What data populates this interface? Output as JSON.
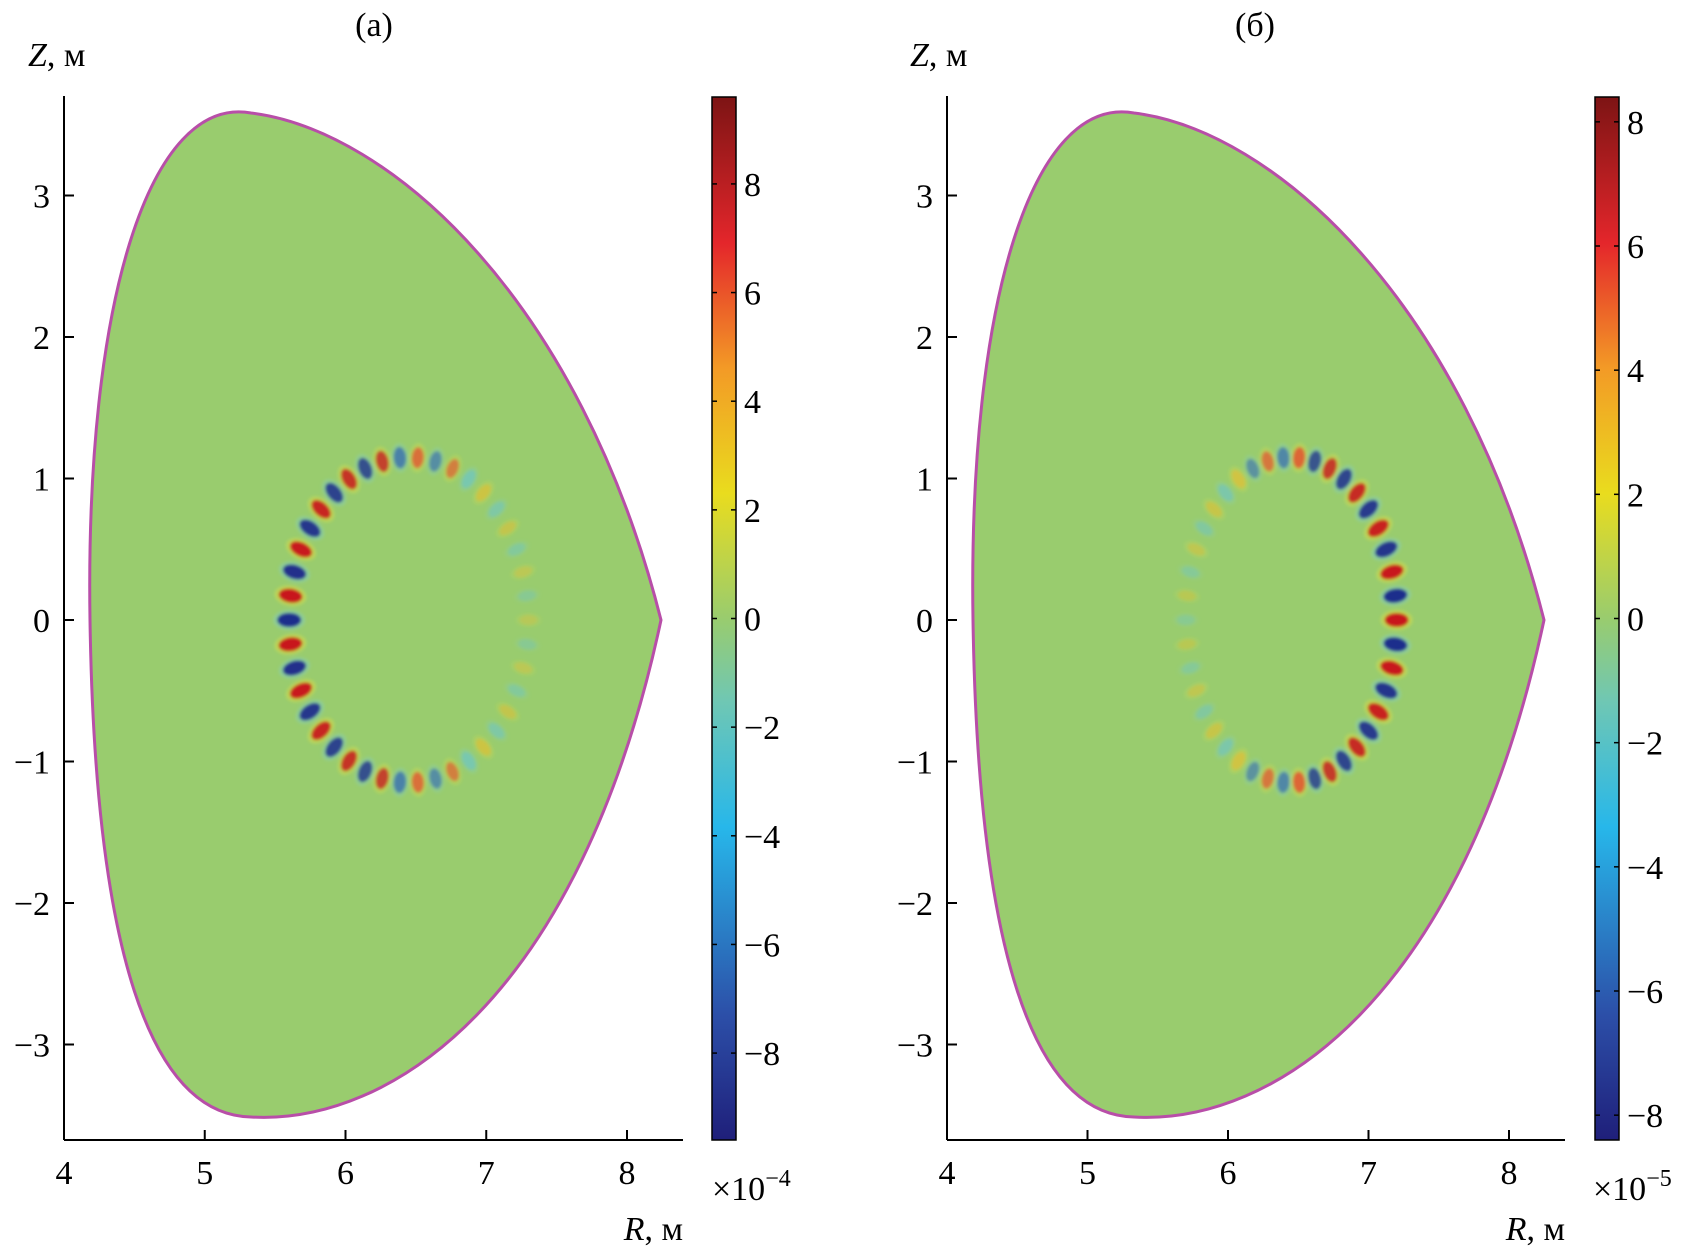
{
  "chart_data": [
    {
      "type": "heatmap",
      "panel_label": "(a)",
      "xlabel_var": "R",
      "xlabel_unit": ", м",
      "ylabel_var": "Z",
      "ylabel_unit": ", м",
      "xlim": [
        4,
        8.4
      ],
      "ylim": [
        -3.7,
        3.7
      ],
      "x_ticks": [
        "4",
        "5",
        "6",
        "7",
        "8"
      ],
      "y_ticks": [
        "3",
        "2",
        "1",
        "0",
        "−1",
        "−2",
        "−3"
      ],
      "colorbar": {
        "ticks": [
          "8",
          "6",
          "4",
          "2",
          "0",
          "−2",
          "−4",
          "−6",
          "−8"
        ],
        "range": [
          -9.6,
          9.6
        ],
        "scale_base": "×10",
        "scale_exp": "−4"
      },
      "boundary_color": "#b84ea8",
      "background_color": "#99cc6e",
      "ring": {
        "center": [
          6.45,
          0
        ],
        "radius_r": 0.85,
        "radius_z": 1.15,
        "blobs": 42,
        "dominant_side": "left"
      }
    },
    {
      "type": "heatmap",
      "panel_label": "(б)",
      "xlabel_var": "R",
      "xlabel_unit": ", м",
      "ylabel_var": "Z",
      "ylabel_unit": ", м",
      "xlim": [
        4,
        8.4
      ],
      "ylim": [
        -3.7,
        3.7
      ],
      "x_ticks": [
        "4",
        "5",
        "6",
        "7",
        "8"
      ],
      "y_ticks": [
        "3",
        "2",
        "1",
        "0",
        "−1",
        "−2",
        "−3"
      ],
      "colorbar": {
        "ticks": [
          "8",
          "6",
          "4",
          "2",
          "0",
          "−2",
          "−4",
          "−6",
          "−8"
        ],
        "range": [
          -8.4,
          8.4
        ],
        "scale_base": "×10",
        "scale_exp": "−5"
      },
      "boundary_color": "#b84ea8",
      "background_color": "#99cc6e",
      "ring": {
        "center": [
          6.45,
          0
        ],
        "radius_r": 0.75,
        "radius_z": 1.15,
        "blobs": 42,
        "dominant_side": "right"
      }
    }
  ]
}
